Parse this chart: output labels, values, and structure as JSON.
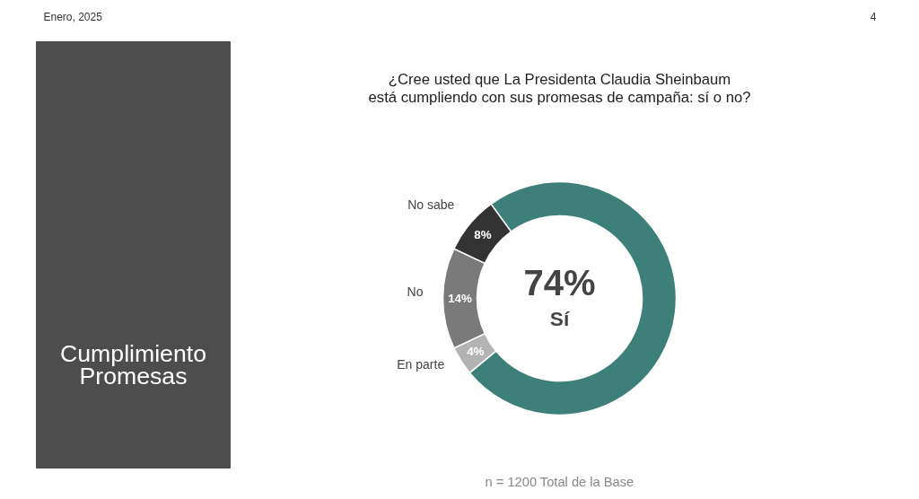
{
  "chart_data": {
    "type": "donut",
    "title": "¿Cree usted que La Presidenta Claudia Sheinbaum\nestá cumpliendo con sus promesas de campaña: sí o no?",
    "categories": [
      "Sí",
      "En parte",
      "No",
      "No sabe"
    ],
    "values": [
      74,
      4,
      14,
      8
    ],
    "colors": [
      "#3d8079",
      "#b3b3b3",
      "#7a7a7a",
      "#333333"
    ],
    "value_labels": [
      "74%",
      "4%",
      "14%",
      "8%"
    ],
    "annotations": [
      "Enero, 2025",
      "4",
      "Cumplimiento\nPromesas",
      "n = 1200 Total de la Base"
    ]
  }
}
